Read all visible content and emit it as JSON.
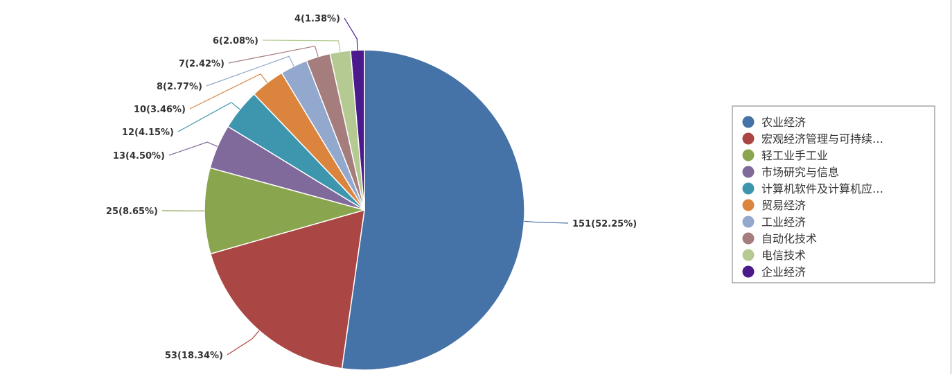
{
  "chart_data": {
    "type": "pie",
    "title": "",
    "slices": [
      {
        "name": "农业经济",
        "value": 151,
        "label": "151(52.25%)",
        "color": "#4572a7"
      },
      {
        "name": "宏观经济管理与可持续…",
        "value": 53,
        "label": "53(18.34%)",
        "color": "#aa4643"
      },
      {
        "name": "轻工业手工业",
        "value": 25,
        "label": "25(8.65%)",
        "color": "#89a54e"
      },
      {
        "name": "市场研究与信息",
        "value": 13,
        "label": "13(4.50%)",
        "color": "#80699b"
      },
      {
        "name": "计算机软件及计算机应…",
        "value": 12,
        "label": "12(4.15%)",
        "color": "#3d96ae"
      },
      {
        "name": "贸易经济",
        "value": 10,
        "label": "10(3.46%)",
        "color": "#db843d"
      },
      {
        "name": "工业经济",
        "value": 8,
        "label": "8(2.77%)",
        "color": "#92a8cd"
      },
      {
        "name": "自动化技术",
        "value": 7,
        "label": "7(2.42%)",
        "color": "#a47d7c"
      },
      {
        "name": "电信技术",
        "value": 6,
        "label": "6(2.08%)",
        "color": "#b5ca92"
      },
      {
        "name": "企业经济",
        "value": 4,
        "label": "4(1.38%)",
        "color": "#4b1a8c"
      }
    ],
    "legend": {
      "placement": "right"
    }
  }
}
